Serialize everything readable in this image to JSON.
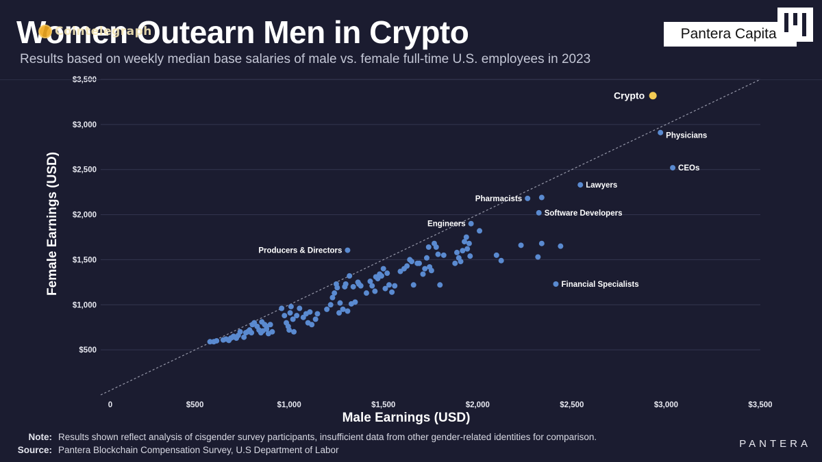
{
  "header": {
    "title": "Women Outearn Men in Crypto",
    "subtitle": "Results based on weekly median base salaries of male vs. female full-time U.S. employees in 2023",
    "badge": "Pantera Capital",
    "watermark_text": "Cointelegraph"
  },
  "footer": {
    "note_label": "Note:",
    "note_text": "Results shown reflect analysis of cisgender survey participants, insufficient data from other gender-related identities for comparison.",
    "source_label": "Source:",
    "source_text": "Pantera Blockchain Compensation Survey, U.S Department of Labor",
    "brand": "PANTERA"
  },
  "colors": {
    "background": "#1b1c30",
    "point": "#5a8ad0",
    "highlight": "#f3cb54",
    "grid": "#34364f",
    "text": "#ffffff"
  },
  "chart_data": {
    "type": "scatter",
    "xlabel": "Male Earnings (USD)",
    "ylabel": "Female Earnings (USD)",
    "xlim": [
      0,
      3500
    ],
    "ylim": [
      0,
      3500
    ],
    "x_ticks": [
      {
        "value": 0,
        "label": "0"
      },
      {
        "value": 500,
        "label": "$500"
      },
      {
        "value": 1000,
        "label": "$1,000"
      },
      {
        "value": 1500,
        "label": "$1,500"
      },
      {
        "value": 2000,
        "label": "$2,000"
      },
      {
        "value": 2500,
        "label": "$2,500"
      },
      {
        "value": 3000,
        "label": "$3,000"
      },
      {
        "value": 3500,
        "label": "$3,500"
      }
    ],
    "y_ticks": [
      {
        "value": 500,
        "label": "$500"
      },
      {
        "value": 1000,
        "label": "$1,000"
      },
      {
        "value": 1500,
        "label": "$1,500"
      },
      {
        "value": 2000,
        "label": "$2,000"
      },
      {
        "value": 2500,
        "label": "$2,500"
      },
      {
        "value": 3000,
        "label": "$3,000"
      },
      {
        "value": 3500,
        "label": "$3,500"
      }
    ],
    "grid": "horizontal",
    "reference_line": "y = x",
    "highlight": {
      "label": "Crypto",
      "x": 2930,
      "y": 3320
    },
    "labeled_points": [
      {
        "label": "Physicians",
        "x": 2970,
        "y": 2910
      },
      {
        "label": "CEOs",
        "x": 3035,
        "y": 2520
      },
      {
        "label": "Lawyers",
        "x": 2545,
        "y": 2330
      },
      {
        "label": "Pharmacists",
        "x": 2265,
        "y": 2180
      },
      {
        "label": "Software Developers",
        "x": 2325,
        "y": 2020
      },
      {
        "label": "Engineers",
        "x": 1965,
        "y": 1900
      },
      {
        "label": "Producers & Directors",
        "x": 1310,
        "y": 1605
      },
      {
        "label": "Financial Specialists",
        "x": 2415,
        "y": 1230
      }
    ],
    "points": [
      [
        580,
        590
      ],
      [
        600,
        590
      ],
      [
        615,
        600
      ],
      [
        650,
        610
      ],
      [
        665,
        620
      ],
      [
        680,
        605
      ],
      [
        690,
        630
      ],
      [
        700,
        640
      ],
      [
        705,
        650
      ],
      [
        720,
        630
      ],
      [
        730,
        660
      ],
      [
        740,
        700
      ],
      [
        760,
        640
      ],
      [
        770,
        690
      ],
      [
        780,
        700
      ],
      [
        790,
        720
      ],
      [
        800,
        690
      ],
      [
        805,
        780
      ],
      [
        815,
        800
      ],
      [
        830,
        760
      ],
      [
        840,
        720
      ],
      [
        850,
        690
      ],
      [
        855,
        810
      ],
      [
        860,
        710
      ],
      [
        870,
        780
      ],
      [
        880,
        730
      ],
      [
        890,
        680
      ],
      [
        900,
        780
      ],
      [
        910,
        700
      ],
      [
        880,
        760
      ],
      [
        960,
        960
      ],
      [
        975,
        880
      ],
      [
        985,
        800
      ],
      [
        995,
        760
      ],
      [
        1000,
        720
      ],
      [
        1005,
        910
      ],
      [
        1010,
        980
      ],
      [
        1020,
        840
      ],
      [
        1025,
        700
      ],
      [
        1040,
        880
      ],
      [
        1055,
        960
      ],
      [
        1075,
        860
      ],
      [
        1090,
        900
      ],
      [
        1100,
        800
      ],
      [
        1110,
        920
      ],
      [
        1120,
        780
      ],
      [
        1140,
        840
      ],
      [
        1150,
        900
      ],
      [
        1200,
        950
      ],
      [
        1220,
        1000
      ],
      [
        1230,
        1080
      ],
      [
        1240,
        1130
      ],
      [
        1250,
        1230
      ],
      [
        1255,
        1190
      ],
      [
        1265,
        910
      ],
      [
        1270,
        1020
      ],
      [
        1285,
        950
      ],
      [
        1295,
        1200
      ],
      [
        1300,
        1230
      ],
      [
        1310,
        930
      ],
      [
        1320,
        1320
      ],
      [
        1330,
        1010
      ],
      [
        1340,
        1200
      ],
      [
        1350,
        1030
      ],
      [
        1365,
        1250
      ],
      [
        1370,
        1230
      ],
      [
        1380,
        1210
      ],
      [
        1410,
        1130
      ],
      [
        1430,
        1260
      ],
      [
        1440,
        1210
      ],
      [
        1455,
        1150
      ],
      [
        1460,
        1310
      ],
      [
        1470,
        1290
      ],
      [
        1480,
        1340
      ],
      [
        1490,
        1320
      ],
      [
        1500,
        1400
      ],
      [
        1510,
        1180
      ],
      [
        1520,
        1350
      ],
      [
        1530,
        1220
      ],
      [
        1545,
        1140
      ],
      [
        1560,
        1210
      ],
      [
        1590,
        1370
      ],
      [
        1610,
        1400
      ],
      [
        1625,
        1430
      ],
      [
        1640,
        1500
      ],
      [
        1650,
        1480
      ],
      [
        1660,
        1220
      ],
      [
        1680,
        1460
      ],
      [
        1690,
        1460
      ],
      [
        1710,
        1340
      ],
      [
        1720,
        1400
      ],
      [
        1730,
        1520
      ],
      [
        1740,
        1640
      ],
      [
        1745,
        1420
      ],
      [
        1755,
        1380
      ],
      [
        1770,
        1680
      ],
      [
        1780,
        1640
      ],
      [
        1790,
        1560
      ],
      [
        1800,
        1220
      ],
      [
        1820,
        1550
      ],
      [
        1880,
        1460
      ],
      [
        1890,
        1580
      ],
      [
        1900,
        1520
      ],
      [
        1910,
        1480
      ],
      [
        1920,
        1600
      ],
      [
        1930,
        1700
      ],
      [
        1940,
        1750
      ],
      [
        1945,
        1620
      ],
      [
        1955,
        1680
      ],
      [
        1960,
        1540
      ],
      [
        2010,
        1820
      ],
      [
        2100,
        1550
      ],
      [
        2125,
        1490
      ],
      [
        2230,
        1660
      ],
      [
        2340,
        2190
      ],
      [
        2340,
        1680
      ],
      [
        2320,
        1530
      ],
      [
        2440,
        1650
      ]
    ]
  }
}
